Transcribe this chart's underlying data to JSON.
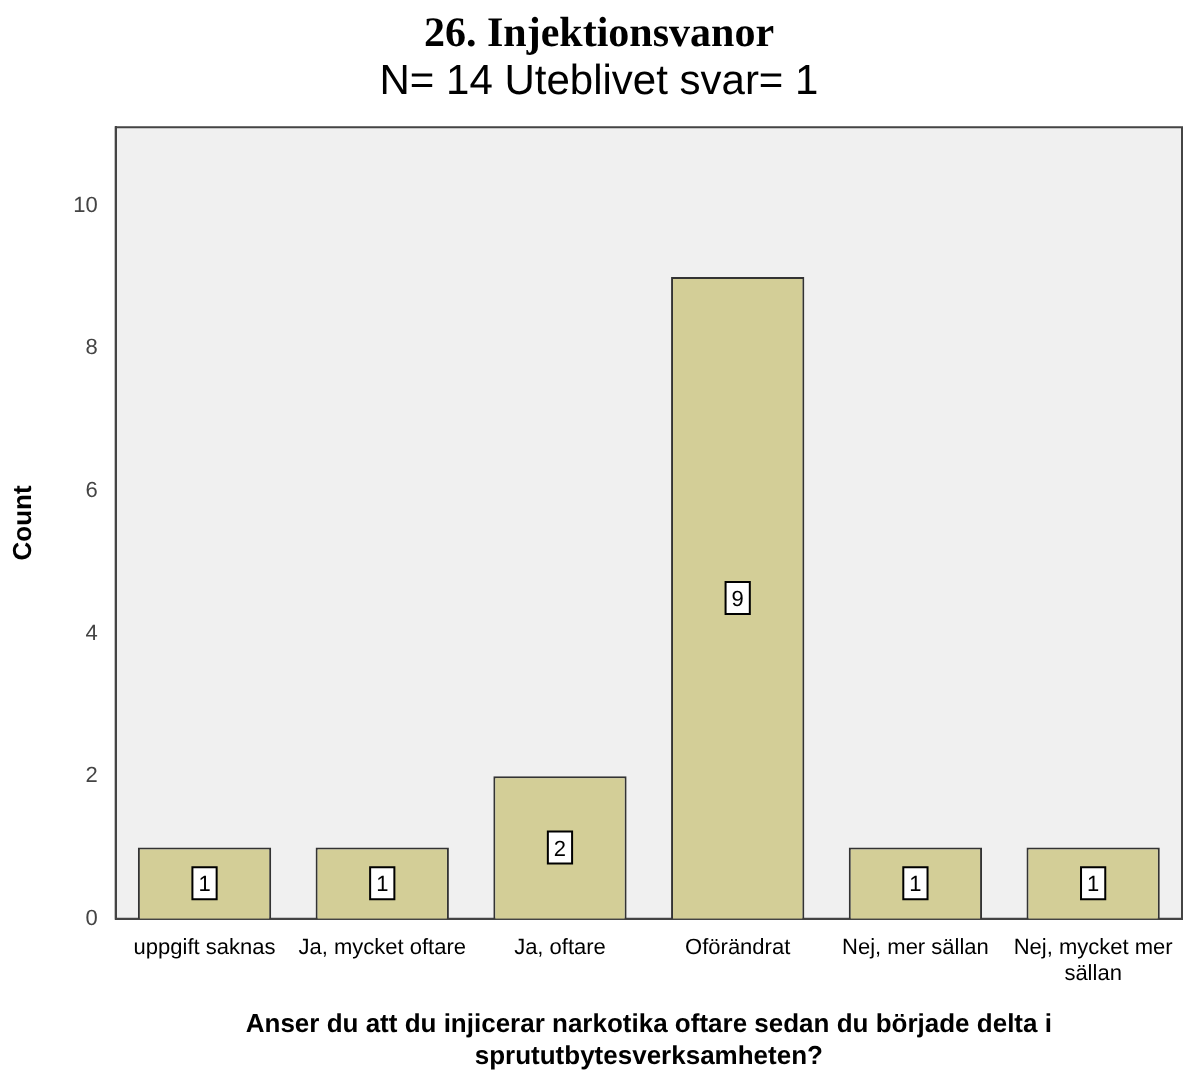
{
  "chart_data": {
    "type": "bar",
    "title": "26. Injektionsvanor",
    "subtitle": "N= 14 Uteblivet svar= 1",
    "xlabel": "Anser du att du injicerar narkotika oftare sedan du började delta i sprututbytesverksamheten?",
    "ylabel": "Count",
    "categories": [
      "uppgift saknas",
      "Ja, mycket oftare",
      "Ja, oftare",
      "Oförändrat",
      "Nej, mer sällan",
      "Nej, mycket mer sällan"
    ],
    "values": [
      1,
      1,
      2,
      9,
      1,
      1
    ],
    "color": "#d3ce97",
    "ylim": [
      0,
      11.1
    ],
    "yticks": [
      0,
      2,
      4,
      6,
      8,
      10
    ],
    "grid": false,
    "legend": false,
    "data_labels": true
  }
}
